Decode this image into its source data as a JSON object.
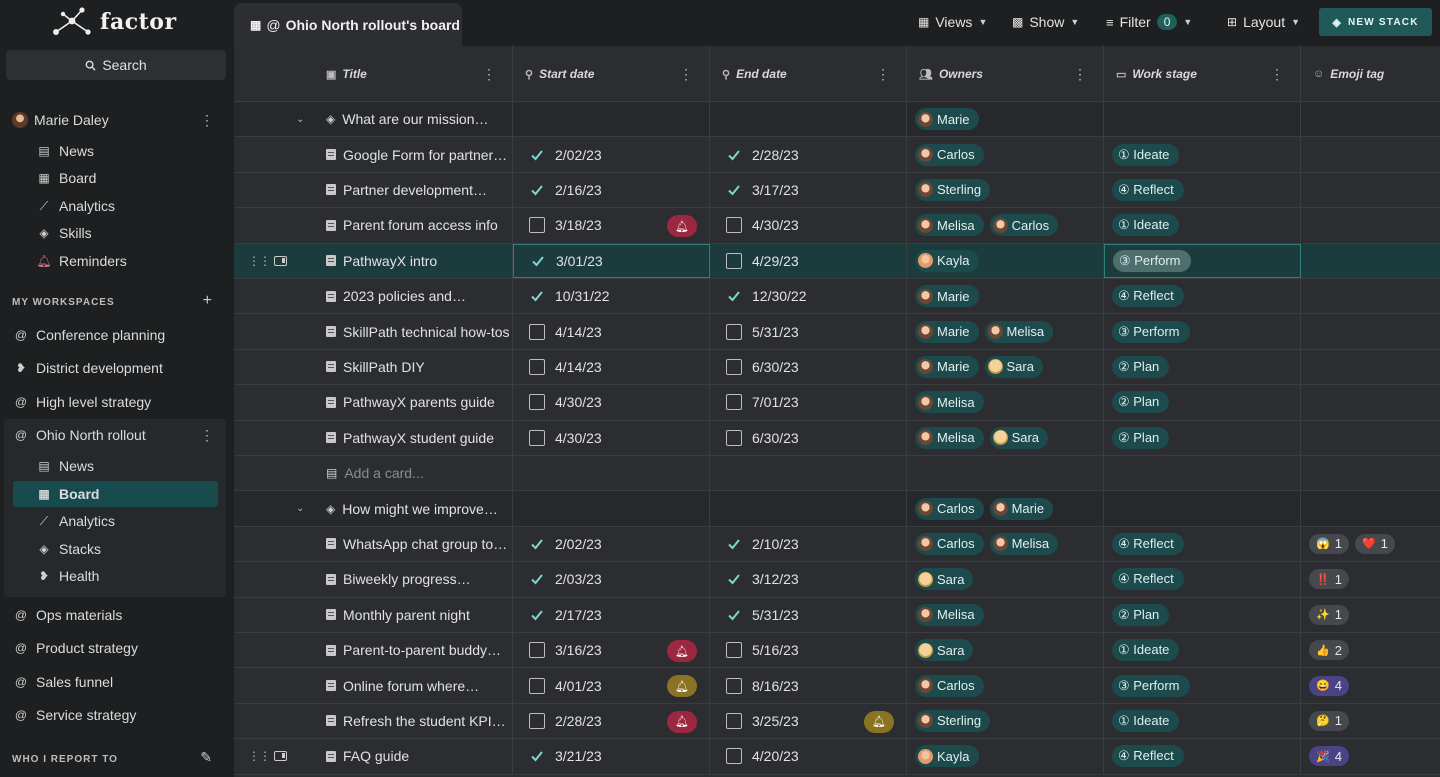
{
  "app": {
    "logo": "factor"
  },
  "search": {
    "label": "Search"
  },
  "user": {
    "name": "Marie Daley"
  },
  "user_nav": [
    {
      "label": "News",
      "icon": "news-icon"
    },
    {
      "label": "Board",
      "icon": "board-icon"
    },
    {
      "label": "Analytics",
      "icon": "analytics-icon"
    },
    {
      "label": "Skills",
      "icon": "skills-icon"
    },
    {
      "label": "Reminders",
      "icon": "bell-icon"
    }
  ],
  "workspaces_label": "MY WORKSPACES",
  "workspaces": [
    {
      "label": "Conference planning"
    },
    {
      "label": "District development"
    },
    {
      "label": "High level strategy"
    },
    {
      "label": "Ohio North rollout"
    },
    {
      "label": "Ops materials"
    },
    {
      "label": "Product strategy"
    },
    {
      "label": "Sales funnel"
    },
    {
      "label": "Service strategy"
    }
  ],
  "ws_nav": [
    {
      "label": "News"
    },
    {
      "label": "Board"
    },
    {
      "label": "Analytics"
    },
    {
      "label": "Stacks"
    },
    {
      "label": "Health"
    }
  ],
  "report_label": "WHO I REPORT TO",
  "topbar": {
    "tab_title": "Ohio North rollout's board",
    "views": "Views",
    "show": "Show",
    "filter": "Filter",
    "filter_count": "0",
    "layout": "Layout",
    "new_stack": "NEW STACK"
  },
  "columns": {
    "title": "Title",
    "start": "Start date",
    "end": "End date",
    "owners": "Owners",
    "stage": "Work stage",
    "emoji": "Emoji tag"
  },
  "rows": [
    {
      "kind": "group",
      "title": "What are our mission…",
      "owners": [
        "Marie"
      ]
    },
    {
      "title": "Google Form for partner…",
      "start": "2/02/23",
      "start_done": true,
      "end": "2/28/23",
      "end_done": true,
      "owners": [
        "Carlos"
      ],
      "stage": "① Ideate"
    },
    {
      "title": "Partner development…",
      "start": "2/16/23",
      "start_done": true,
      "end": "3/17/23",
      "end_done": true,
      "owners": [
        "Sterling"
      ],
      "stage": "④ Reflect"
    },
    {
      "title": "Parent forum access info",
      "start": "3/18/23",
      "start_done": false,
      "start_bell": "red",
      "end": "4/30/23",
      "end_done": false,
      "owners": [
        "Melisa",
        "Carlos"
      ],
      "stage": "① Ideate"
    },
    {
      "title": "PathwayX intro",
      "selected": true,
      "start": "3/01/23",
      "start_done": true,
      "end": "4/29/23",
      "end_done": false,
      "owners": [
        "Kayla"
      ],
      "stage": "③ Perform",
      "stage_hl": true
    },
    {
      "title": "2023 policies and…",
      "start": "10/31/22",
      "start_done": true,
      "end": "12/30/22",
      "end_done": true,
      "owners": [
        "Marie"
      ],
      "stage": "④ Reflect"
    },
    {
      "title": "SkillPath technical how-tos",
      "start": "4/14/23",
      "start_done": false,
      "end": "5/31/23",
      "end_done": false,
      "owners": [
        "Marie",
        "Melisa"
      ],
      "stage": "③ Perform"
    },
    {
      "title": "SkillPath DIY",
      "start": "4/14/23",
      "start_done": false,
      "end": "6/30/23",
      "end_done": false,
      "owners": [
        "Marie",
        "Sara"
      ],
      "stage": "② Plan"
    },
    {
      "title": "PathwayX parents guide",
      "start": "4/30/23",
      "start_done": false,
      "end": "7/01/23",
      "end_done": false,
      "owners": [
        "Melisa"
      ],
      "stage": "② Plan"
    },
    {
      "title": "PathwayX student guide",
      "start": "4/30/23",
      "start_done": false,
      "end": "6/30/23",
      "end_done": false,
      "owners": [
        "Melisa",
        "Sara"
      ],
      "stage": "② Plan"
    },
    {
      "kind": "add",
      "title": "Add a card..."
    },
    {
      "kind": "group",
      "title": "How might we improve…",
      "owners": [
        "Carlos",
        "Marie"
      ]
    },
    {
      "title": "WhatsApp chat group to…",
      "start": "2/02/23",
      "start_done": true,
      "end": "2/10/23",
      "end_done": true,
      "owners": [
        "Carlos",
        "Melisa"
      ],
      "stage": "④ Reflect",
      "emoji": [
        {
          "e": "😱",
          "n": "1"
        },
        {
          "e": "❤️",
          "n": "1"
        }
      ]
    },
    {
      "title": "Biweekly progress…",
      "start": "2/03/23",
      "start_done": true,
      "end": "3/12/23",
      "end_done": true,
      "owners": [
        "Sara"
      ],
      "stage": "④ Reflect",
      "emoji": [
        {
          "e": "‼️",
          "n": "1"
        }
      ]
    },
    {
      "title": "Monthly parent night",
      "start": "2/17/23",
      "start_done": true,
      "end": "5/31/23",
      "end_done": true,
      "owners": [
        "Melisa"
      ],
      "stage": "② Plan",
      "emoji": [
        {
          "e": "✨",
          "n": "1"
        }
      ]
    },
    {
      "title": "Parent-to-parent buddy…",
      "start": "3/16/23",
      "start_done": false,
      "start_bell": "red",
      "end": "5/16/23",
      "end_done": false,
      "owners": [
        "Sara"
      ],
      "stage": "① Ideate",
      "emoji": [
        {
          "e": "👍",
          "n": "2"
        }
      ]
    },
    {
      "title": "Online forum where…",
      "start": "4/01/23",
      "start_done": false,
      "start_bell": "amber",
      "end": "8/16/23",
      "end_done": false,
      "owners": [
        "Carlos"
      ],
      "stage": "③ Perform",
      "emoji": [
        {
          "e": "😄",
          "n": "4",
          "pur": true
        }
      ]
    },
    {
      "title": "Refresh the student KPI…",
      "start": "2/28/23",
      "start_done": false,
      "start_bell": "red",
      "end": "3/25/23",
      "end_done": false,
      "end_bell": "amber",
      "owners": [
        "Sterling"
      ],
      "stage": "① Ideate",
      "emoji": [
        {
          "e": "🤔",
          "n": "1"
        }
      ]
    },
    {
      "title": "FAQ guide",
      "selected_partial": true,
      "start": "3/21/23",
      "start_done": true,
      "end": "4/20/23",
      "end_done": false,
      "owners": [
        "Kayla"
      ],
      "stage": "④ Reflect",
      "emoji": [
        {
          "e": "🎉",
          "n": "4",
          "pur": true
        }
      ]
    }
  ]
}
